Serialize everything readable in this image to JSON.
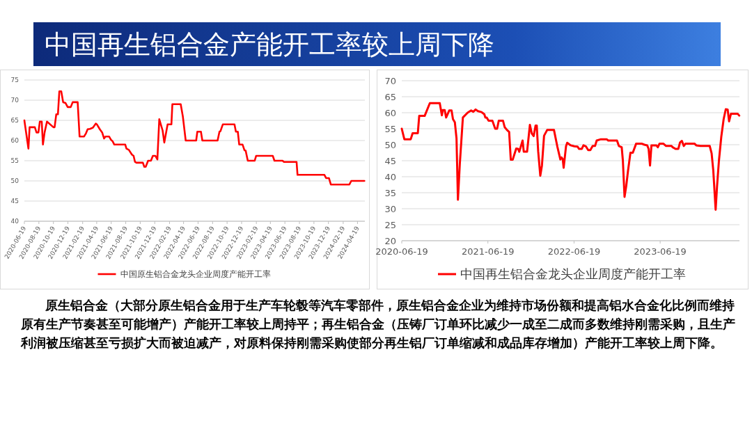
{
  "chart_data": [
    {
      "type": "other",
      "title": "中国再生铝合金产能开工率较上周下降"
    },
    {
      "type": "line",
      "xlim": [
        "2020-06-19",
        "2024-05-20"
      ],
      "ylim": [
        40,
        75
      ],
      "yticks": [
        40,
        45,
        50,
        55,
        60,
        65,
        70,
        75
      ],
      "xticks": [
        "2020-06-19",
        "2020-08-19",
        "2020-10-19",
        "2020-12-19",
        "2021-02-19",
        "2021-04-19",
        "2021-06-19",
        "2021-08-19",
        "2021-10-19",
        "2021-12-19",
        "2022-02-19",
        "2022-04-19",
        "2022-06-19",
        "2022-08-19",
        "2022-10-19",
        "2022-12-19",
        "2023-02-19",
        "2023-04-19",
        "2023-06-19",
        "2023-08-19",
        "2023-10-19",
        "2023-12-19",
        "2024-02-19",
        "2024-04-19"
      ],
      "grid": "y",
      "legend": "bottom",
      "x": [
        "2020-06-19",
        "2020-07-06",
        "2020-07-11",
        "2020-08-02",
        "2020-08-09",
        "2020-08-17",
        "2020-08-23",
        "2020-08-31",
        "2020-09-05",
        "2020-09-12",
        "2020-09-22",
        "2020-10-19",
        "2020-10-24",
        "2020-10-31",
        "2020-11-07",
        "2020-11-13",
        "2020-11-21",
        "2020-11-29",
        "2020-12-09",
        "2020-12-18",
        "2020-12-31",
        "2021-01-08",
        "2021-01-29",
        "2021-02-06",
        "2021-02-25",
        "2021-03-05",
        "2021-03-12",
        "2021-03-22",
        "2021-04-03",
        "2021-04-15",
        "2021-04-20",
        "2021-05-02",
        "2021-05-12",
        "2021-05-20",
        "2021-05-26",
        "2021-06-10",
        "2021-06-18",
        "2021-06-25",
        "2021-07-02",
        "2021-08-17",
        "2021-08-22",
        "2021-09-01",
        "2021-09-14",
        "2021-09-21",
        "2021-09-27",
        "2021-10-03",
        "2021-10-30",
        "2021-11-05",
        "2021-11-11",
        "2021-11-21",
        "2021-12-03",
        "2021-12-11",
        "2021-12-22",
        "2021-12-30",
        "2022-01-07",
        "2022-01-21",
        "2022-01-28",
        "2022-02-11",
        "2022-02-27",
        "2022-03-03",
        "2022-04-07",
        "2022-04-16",
        "2022-04-28",
        "2022-06-11",
        "2022-06-16",
        "2022-07-01",
        "2022-07-07",
        "2022-09-09",
        "2022-09-17",
        "2022-09-21",
        "2022-10-01",
        "2022-11-19",
        "2022-11-25",
        "2022-12-03",
        "2022-12-09",
        "2022-12-23",
        "2022-12-31",
        "2023-01-05",
        "2023-01-14",
        "2023-02-12",
        "2023-02-18",
        "2023-04-29",
        "2023-05-06",
        "2023-06-09",
        "2023-06-15",
        "2023-08-07",
        "2023-08-11",
        "2023-12-02",
        "2023-12-09",
        "2023-12-21",
        "2023-12-29",
        "2024-03-16",
        "2024-03-24",
        "2024-05-18"
      ],
      "series": [
        {
          "name": "中国原生铝合金龙头企业周度产能开工率",
          "color": "#ff0000",
          "values": [
            65,
            58,
            63.3,
            63.3,
            62,
            62,
            64.7,
            64.7,
            59,
            62,
            64.7,
            63.3,
            63.3,
            66.5,
            66.5,
            72.2,
            72.2,
            69.5,
            69.3,
            68.3,
            68.3,
            69.5,
            69.5,
            61,
            61,
            61.8,
            62.8,
            62.9,
            63.2,
            64.2,
            64,
            62.8,
            62,
            60.5,
            61,
            61,
            60.2,
            59.8,
            59,
            59,
            58,
            57.7,
            56.5,
            56.2,
            54.7,
            54.5,
            54.5,
            53.5,
            53.5,
            55,
            55,
            56.2,
            56.2,
            55.3,
            65.3,
            62.5,
            59.5,
            64,
            64,
            69,
            69,
            66,
            60,
            60,
            62.2,
            62.2,
            60,
            60,
            62.2,
            62.3,
            64,
            64,
            62.2,
            62.2,
            59,
            59,
            57.6,
            57.5,
            55,
            55,
            56.2,
            56.2,
            55,
            55,
            54.7,
            54.7,
            51.5,
            51.5,
            50.7,
            50.7,
            49.1,
            49.1,
            50,
            50
          ]
        }
      ]
    },
    {
      "type": "line",
      "xlim": [
        "2020-06-19",
        "2024-05-20"
      ],
      "ylim": [
        20,
        70
      ],
      "yticks": [
        20,
        25,
        30,
        35,
        40,
        45,
        50,
        55,
        60,
        65,
        70
      ],
      "xticks": [
        "2020-06-19",
        "2021-06-19",
        "2022-06-19",
        "2023-06-19"
      ],
      "grid": "y",
      "legend": "bottom",
      "x": [
        "2020-06-19",
        "2020-06-30",
        "2020-07-27",
        "2020-08-04",
        "2020-08-26",
        "2020-09-01",
        "2020-09-24",
        "2020-10-16",
        "2020-11-27",
        "2020-12-06",
        "2020-12-10",
        "2020-12-18",
        "2020-12-24",
        "2021-01-06",
        "2021-01-16",
        "2021-01-22",
        "2021-01-30",
        "2021-02-06",
        "2021-02-12",
        "2021-02-20",
        "2021-03-05",
        "2021-03-25",
        "2021-04-09",
        "2021-04-18",
        "2021-04-28",
        "2021-05-08",
        "2021-05-23",
        "2021-06-04",
        "2021-06-08",
        "2021-06-14",
        "2021-06-22",
        "2021-07-08",
        "2021-07-20",
        "2021-07-28",
        "2021-08-04",
        "2021-08-22",
        "2021-08-29",
        "2021-09-08",
        "2021-09-17",
        "2021-09-24",
        "2021-10-02",
        "2021-10-17",
        "2021-10-25",
        "2021-10-30",
        "2021-11-13",
        "2021-11-18",
        "2021-12-02",
        "2021-12-14",
        "2021-12-22",
        "2021-12-30",
        "2022-01-07",
        "2022-01-12",
        "2022-01-18",
        "2022-01-27",
        "2022-02-03",
        "2022-02-12",
        "2022-02-25",
        "2022-03-26",
        "2022-04-09",
        "2022-04-17",
        "2022-04-22",
        "2022-04-27",
        "2022-05-02",
        "2022-05-06",
        "2022-05-16",
        "2022-05-21",
        "2022-06-05",
        "2022-06-20",
        "2022-07-04",
        "2022-07-10",
        "2022-07-22",
        "2022-07-29",
        "2022-08-08",
        "2022-08-18",
        "2022-08-27",
        "2022-09-06",
        "2022-09-16",
        "2022-09-23",
        "2022-10-11",
        "2022-11-04",
        "2022-11-11",
        "2022-12-18",
        "2022-12-26",
        "2023-01-07",
        "2023-01-12",
        "2023-01-19",
        "2023-01-26",
        "2023-02-03",
        "2023-02-13",
        "2023-02-23",
        "2023-03-09",
        "2023-04-03",
        "2023-04-13",
        "2023-04-25",
        "2023-05-01",
        "2023-05-07",
        "2023-05-13",
        "2023-06-03",
        "2023-06-09",
        "2023-06-16",
        "2023-07-03",
        "2023-07-14",
        "2023-08-06",
        "2023-08-11",
        "2023-08-23",
        "2023-09-04",
        "2023-09-11",
        "2023-09-19",
        "2023-09-27",
        "2023-10-04",
        "2023-11-12",
        "2023-11-19",
        "2023-12-07",
        "2024-01-15",
        "2024-01-23",
        "2024-01-30",
        "2024-02-09",
        "2024-02-15",
        "2024-02-23",
        "2024-03-04",
        "2024-03-14",
        "2024-03-23",
        "2024-03-31",
        "2024-04-06",
        "2024-04-14",
        "2024-05-12",
        "2024-05-19"
      ],
      "series": [
        {
          "name": "中国再生铝合金龙头企业周度产能开工率",
          "color": "#ff0000",
          "values": [
            55,
            51.7,
            51.7,
            53.6,
            53.6,
            59,
            59,
            63,
            63,
            59.2,
            60.8,
            60.8,
            58.5,
            60.7,
            60.7,
            58,
            57,
            52,
            32.8,
            44,
            58.5,
            60,
            60.7,
            60.3,
            61,
            60.5,
            60.2,
            59.5,
            58.5,
            58.5,
            57.5,
            57.5,
            55,
            55,
            57.5,
            57.5,
            55.5,
            54.6,
            54,
            45.3,
            45.3,
            48.8,
            48.7,
            47.8,
            51.3,
            47.8,
            47.8,
            56.2,
            53.5,
            52.7,
            56,
            56,
            48,
            40.3,
            43.5,
            52.8,
            54.6,
            54.6,
            49.5,
            47,
            45.4,
            46,
            45.5,
            42.8,
            49.5,
            50.6,
            49.8,
            49.5,
            49.4,
            48.7,
            48.7,
            49.8,
            49.5,
            48.3,
            48.3,
            49.6,
            49.6,
            51.3,
            51.7,
            51.7,
            51.3,
            51.3,
            49.6,
            49.2,
            45,
            33.7,
            37,
            42,
            47.5,
            47.5,
            50.3,
            50.3,
            50,
            49.8,
            48.7,
            43.5,
            49.8,
            49.8,
            49.2,
            50.3,
            50.3,
            49.6,
            49.6,
            49.2,
            48.7,
            48.7,
            50.7,
            51.2,
            49.6,
            50.3,
            50.3,
            49.8,
            49.6,
            49.6,
            47.3,
            42,
            29.7,
            37,
            45,
            52.5,
            58,
            61.1,
            61,
            57.3,
            59.7,
            59.7,
            59.1
          ]
        }
      ]
    },
    {
      "type": "other",
      "annotations": [
        "原生铝合金（大部分原生铝合金用于生产车轮毂等汽车零部件，原生铝合金企业为维持市场份额和提高铝水合金化比例而维持原有生产节奏甚至可能增产）产能开工率较上周持平；再生铝合金（压铸厂订单环比减少一成至二成而多数维持刚需采购，且生产利润被压缩甚至亏损扩大而被迫减产，对原料保持刚需采购使部分再生铝厂订单缩减和成品库存增加）产能开工率较上周下降。"
      ]
    }
  ]
}
